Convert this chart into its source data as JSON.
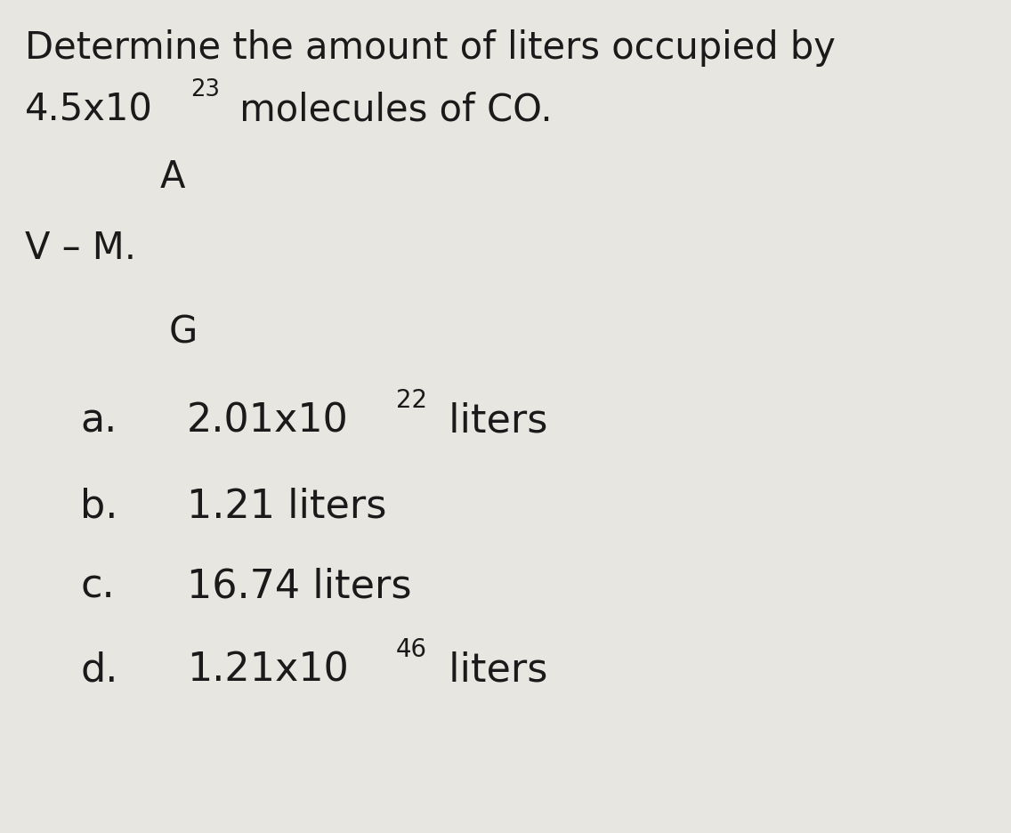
{
  "background_color": "#e8e6e0",
  "text_color": "#1a1a1a",
  "title_line1": "Determine the amount of liters occupied by",
  "title_line2_base": "4.5x10",
  "title_line2_exp": "23",
  "title_line2_suffix": " molecules of CO.",
  "label_A": "A",
  "label_VM": "V – M.",
  "label_G": "G",
  "options": [
    {
      "letter": "a.",
      "base": "2.01x10",
      "exp": "22",
      "suffix": " liters"
    },
    {
      "letter": "b.",
      "base": "1.21 liters",
      "exp": "",
      "suffix": ""
    },
    {
      "letter": "c.",
      "base": "16.74 liters",
      "exp": "",
      "suffix": ""
    },
    {
      "letter": "d.",
      "base": "1.21x10",
      "exp": "46",
      "suffix": " liters"
    }
  ],
  "title_fontsize": 30,
  "body_fontsize": 30,
  "option_fontsize": 32,
  "sup_scale": 0.62
}
